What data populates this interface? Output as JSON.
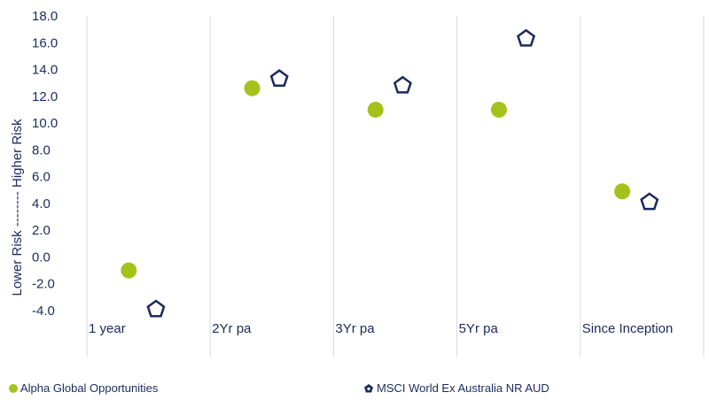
{
  "chart_data": {
    "type": "scatter",
    "categories": [
      "1 year",
      "2Yr pa",
      "3Yr pa",
      "5Yr pa",
      "Since Inception"
    ],
    "ylabel": "Lower Risk -------- Higher Risk",
    "ylim": [
      -4.0,
      18.0
    ],
    "yticks": [
      "18.0",
      "16.0",
      "14.0",
      "12.0",
      "10.0",
      "8.0",
      "6.0",
      "4.0",
      "2.0",
      "0.0",
      "-2.0",
      "-4.0"
    ],
    "grid": "vertical",
    "legend_position": "bottom",
    "series": [
      {
        "name": "Alpha Global Opportunities",
        "marker": "circle",
        "color": "#a4c21c",
        "values": [
          -1.0,
          12.6,
          11.0,
          11.0,
          4.9
        ]
      },
      {
        "name": "MSCI World Ex Australia NR AUD",
        "marker": "pentagon",
        "color": "#1b2a5e",
        "values": [
          -3.9,
          13.3,
          12.8,
          16.3,
          4.1
        ]
      }
    ]
  },
  "legend": {
    "item1": "Alpha Global Opportunities",
    "item2": "MSCI World Ex Australia NR AUD"
  }
}
